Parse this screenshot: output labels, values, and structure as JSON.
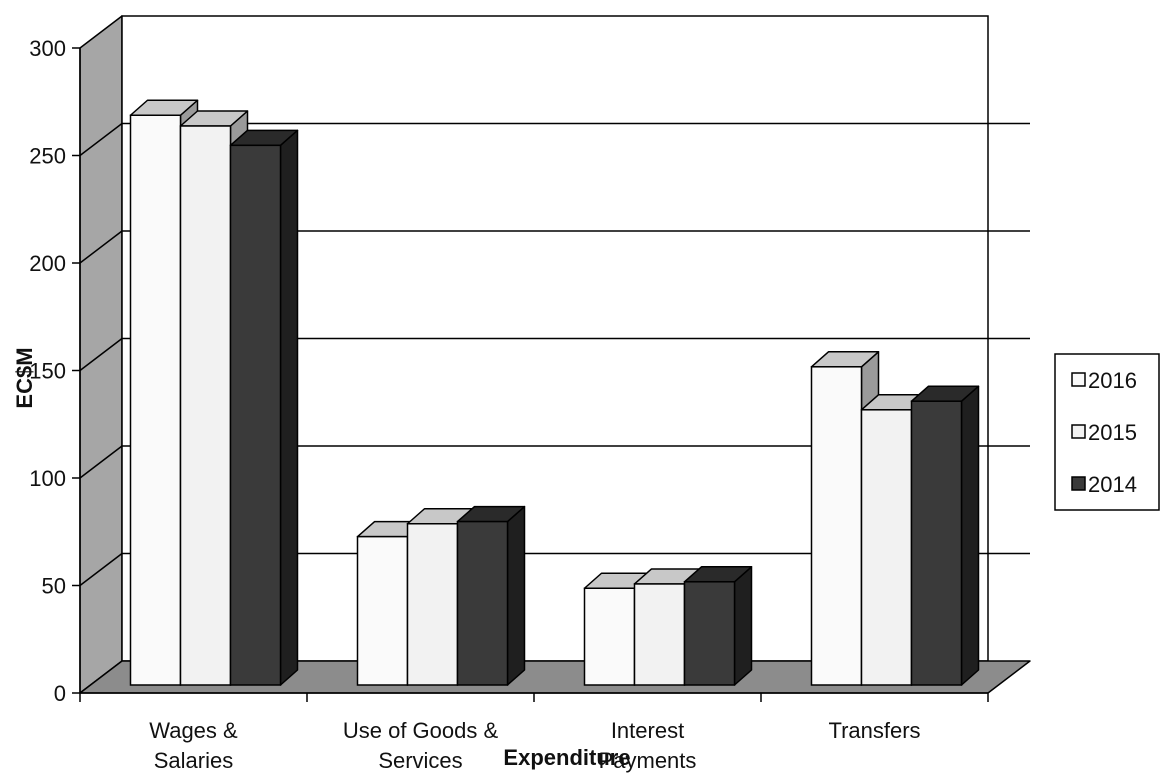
{
  "chart_data": {
    "type": "bar",
    "title": "",
    "xlabel": "Expenditure",
    "ylabel": "EC$M",
    "ylim": [
      0,
      300
    ],
    "yticks": [
      0,
      50,
      100,
      150,
      200,
      250,
      300
    ],
    "categories": [
      [
        "Wages &",
        "Salaries"
      ],
      [
        "Use of Goods &",
        "Services"
      ],
      [
        "Interest",
        "Payments"
      ],
      [
        "Transfers"
      ]
    ],
    "series": [
      {
        "name": "2016",
        "values": [
          265,
          69,
          45,
          148
        ],
        "color": "#fafafa"
      },
      {
        "name": "2015",
        "values": [
          260,
          75,
          47,
          128
        ],
        "color": "#f2f2f2"
      },
      {
        "name": "2014",
        "values": [
          251,
          76,
          48,
          132
        ],
        "color": "#3a3a3a"
      }
    ],
    "grid": true,
    "legend_position": "right",
    "colors": {
      "wall": "#ffffff",
      "side_wall": "#a6a6a6",
      "floor": "#8c8c8c",
      "gridline": "#000000"
    }
  }
}
